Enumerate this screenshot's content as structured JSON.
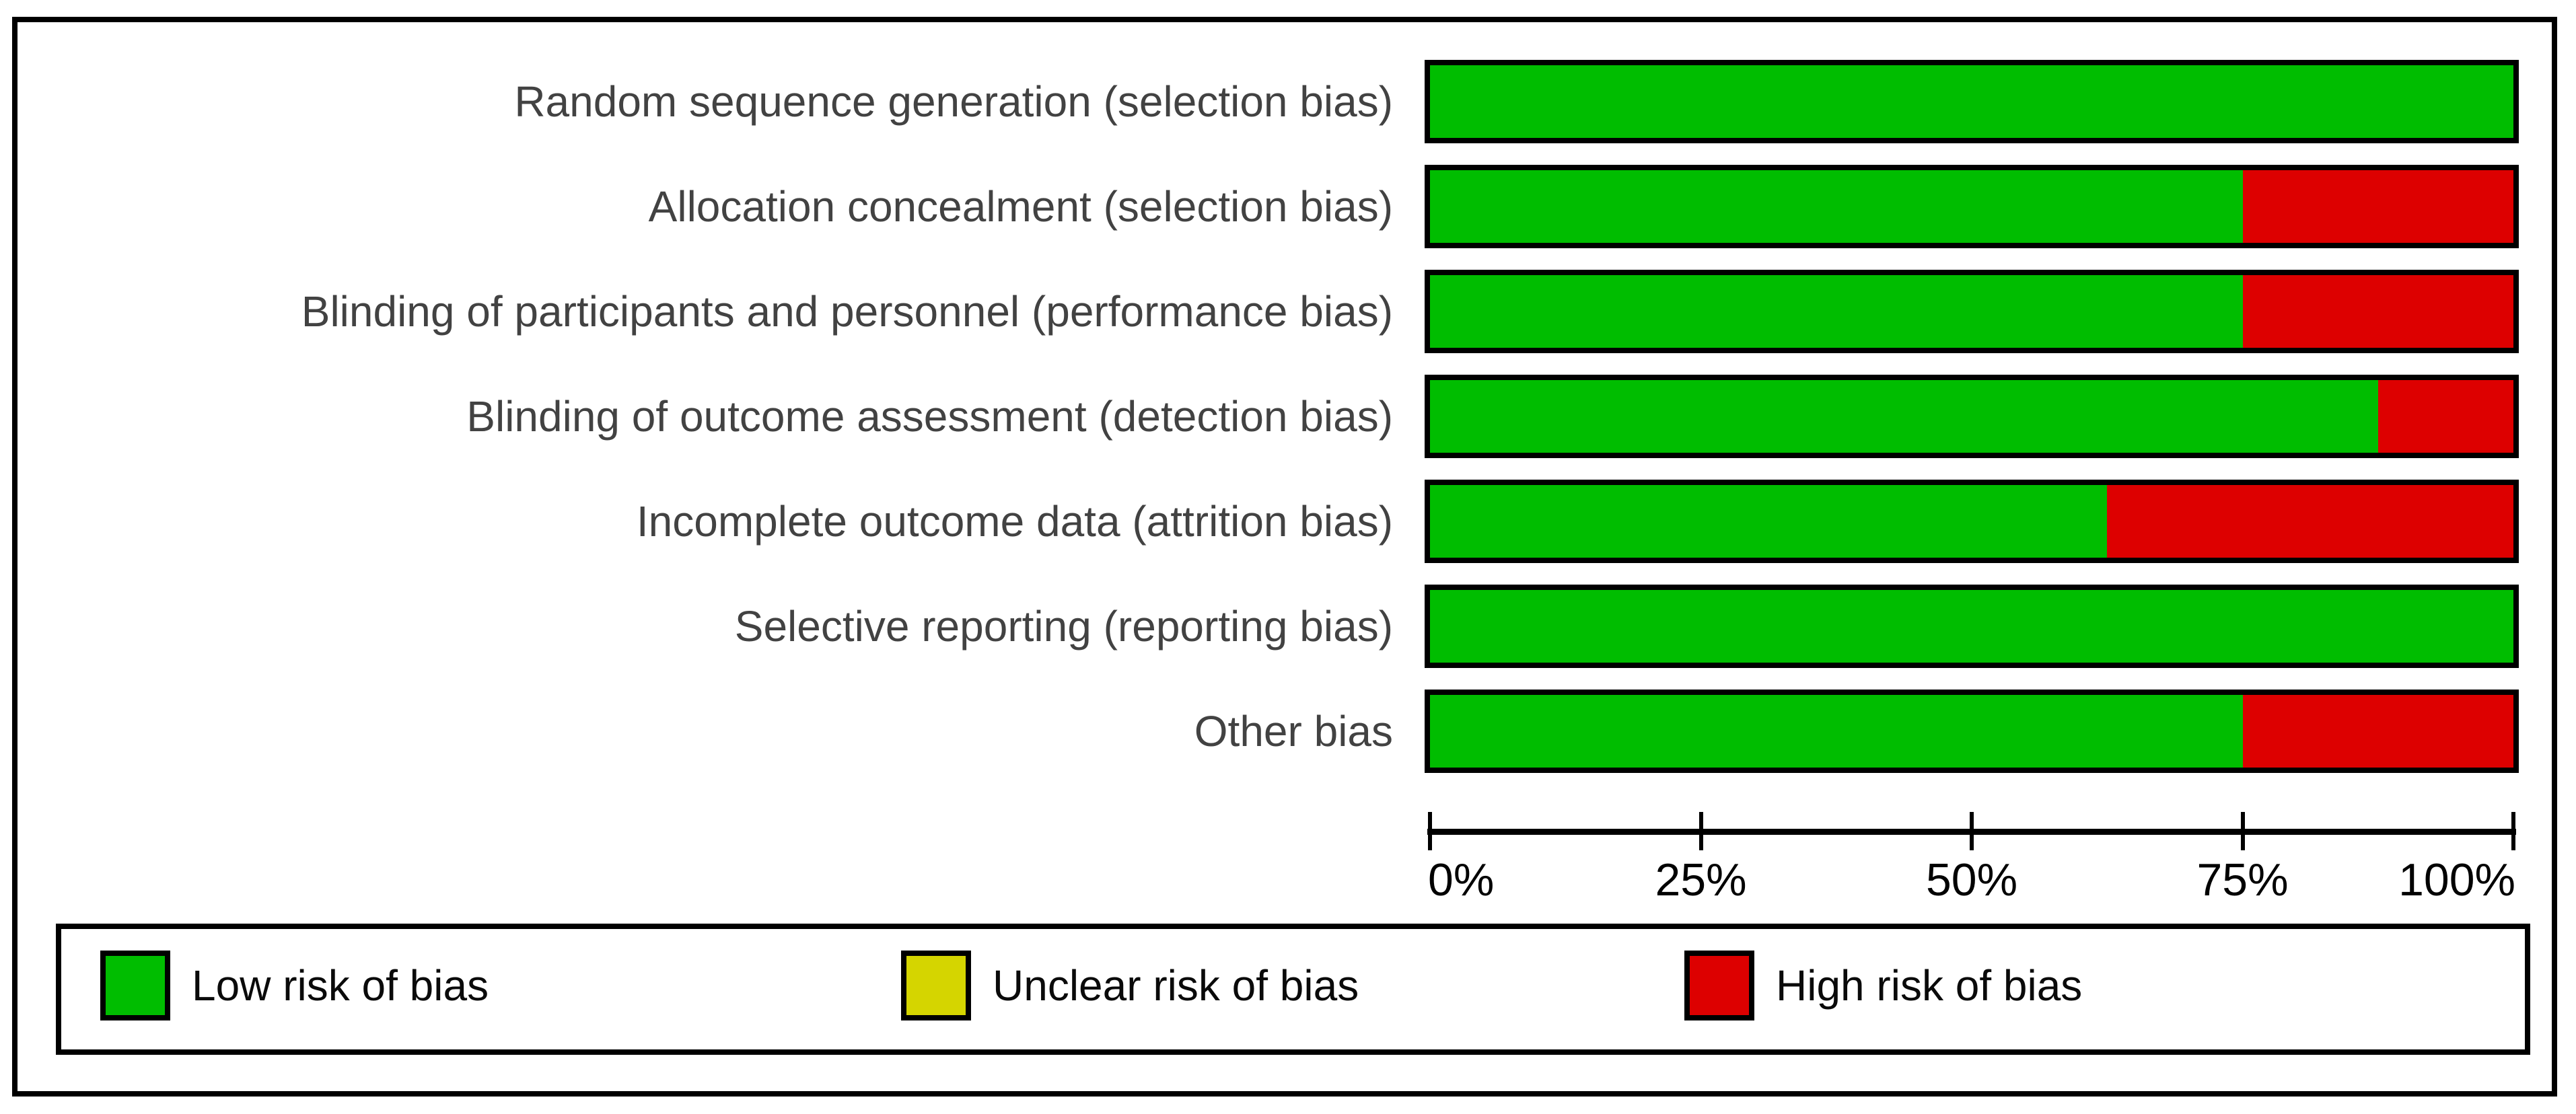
{
  "chart_data": {
    "type": "bar",
    "orientation": "horizontal",
    "stacked": true,
    "title": "",
    "xlabel": "",
    "ylabel": "",
    "grid": false,
    "legend_position": "bottom",
    "x_range": [
      0,
      100
    ],
    "x_axis_ticks": [
      "0%",
      "25%",
      "50%",
      "75%",
      "100%"
    ],
    "categories": [
      "Random sequence generation (selection bias)",
      "Allocation concealment (selection bias)",
      "Blinding of participants and personnel (performance bias)",
      "Blinding of outcome assessment (detection bias)",
      "Incomplete outcome data (attrition bias)",
      "Selective reporting (reporting bias)",
      "Other bias"
    ],
    "series": [
      {
        "name": "Low risk of bias",
        "key": "low",
        "color": "#00BD00",
        "values": [
          100,
          75,
          75,
          87.5,
          62.5,
          100,
          75
        ]
      },
      {
        "name": "Unclear risk of bias",
        "key": "unclear",
        "color": "#D5D500",
        "values": [
          0,
          0,
          0,
          0,
          0,
          0,
          0
        ]
      },
      {
        "name": "High risk of bias",
        "key": "high",
        "color": "#DD0000",
        "values": [
          0,
          25,
          25,
          12.5,
          37.5,
          0,
          25
        ]
      }
    ],
    "colors": {
      "bar_border": "#000000",
      "axis": "#000000",
      "background": "#FFFFFF"
    }
  }
}
